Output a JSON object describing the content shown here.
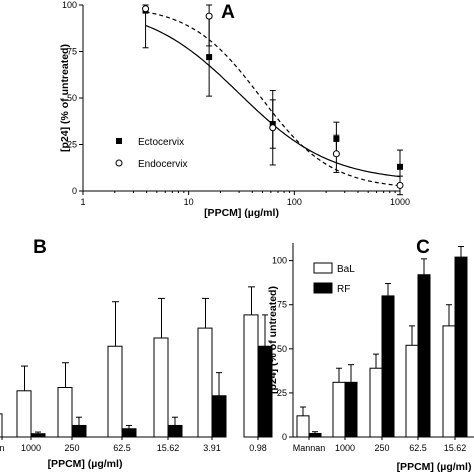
{
  "chart_data": [
    {
      "panel_label": "A",
      "type": "scatter",
      "x_scale": "log",
      "xlabel": "[PPCM] (µg/ml)",
      "ylabel": "[p24] (% of untreated)",
      "xlim": [
        1,
        1000
      ],
      "ylim": [
        0,
        100
      ],
      "x_ticks": [
        "1",
        "10",
        "100",
        "1000"
      ],
      "y_ticks": [
        "0",
        "25",
        "50",
        "75",
        "100"
      ],
      "legend_position": "left",
      "series": [
        {
          "name": "Ectocervix",
          "marker": "filled-square",
          "line": "solid",
          "points": [
            {
              "x": 3.91,
              "y": 97,
              "err": 20
            },
            {
              "x": 15.62,
              "y": 72,
              "err": 21
            },
            {
              "x": 62.5,
              "y": 36,
              "err": 13
            },
            {
              "x": 250,
              "y": 28,
              "err": 9
            },
            {
              "x": 1000,
              "y": 13,
              "err": 9
            }
          ]
        },
        {
          "name": "Endocervix",
          "marker": "open-circle",
          "line": "dashed",
          "points": [
            {
              "x": 3.91,
              "y": 98,
              "err": 2
            },
            {
              "x": 15.62,
              "y": 94,
              "err": 16
            },
            {
              "x": 62.5,
              "y": 34,
              "err": 20
            },
            {
              "x": 250,
              "y": 20,
              "err": 10
            },
            {
              "x": 1000,
              "y": 3,
              "err": 5
            }
          ]
        }
      ]
    },
    {
      "panel_label": "B",
      "type": "bar",
      "xlabel": "[PPCM] (µg/ml)",
      "categories": [
        "n",
        "1000",
        "250",
        "62.5",
        "15.62",
        "3.91",
        "0.98"
      ],
      "ylim": [
        0,
        100
      ],
      "series": [
        {
          "values": [
            14,
            28,
            30,
            55,
            60,
            66,
            74
          ],
          "err": [
            12,
            15,
            15,
            27,
            24,
            18,
            17
          ]
        },
        {
          "values": [
            0,
            2,
            7,
            5,
            7,
            25,
            55
          ],
          "err": [
            0,
            1,
            5,
            2,
            5,
            14,
            19
          ]
        }
      ]
    },
    {
      "panel_label": "C",
      "type": "bar",
      "xlabel": "[PPCM] (µg/ml)",
      "ylabel": "[p24] (% of untreated)",
      "categories": [
        "Mannan",
        "1000",
        "250",
        "62.5",
        "15.62"
      ],
      "ylim": [
        0,
        100
      ],
      "y_ticks": [
        "0",
        "25",
        "50",
        "75",
        "100"
      ],
      "legend_position": "top-left",
      "series": [
        {
          "name": "BaL",
          "color": "#ffffff",
          "values": [
            12,
            31,
            39,
            52,
            63
          ],
          "err": [
            5,
            8,
            8,
            11,
            12
          ]
        },
        {
          "name": "RF",
          "color": "#000000",
          "values": [
            2,
            31,
            80,
            92,
            102
          ],
          "err": [
            1,
            10,
            7,
            9,
            6
          ]
        }
      ]
    }
  ]
}
